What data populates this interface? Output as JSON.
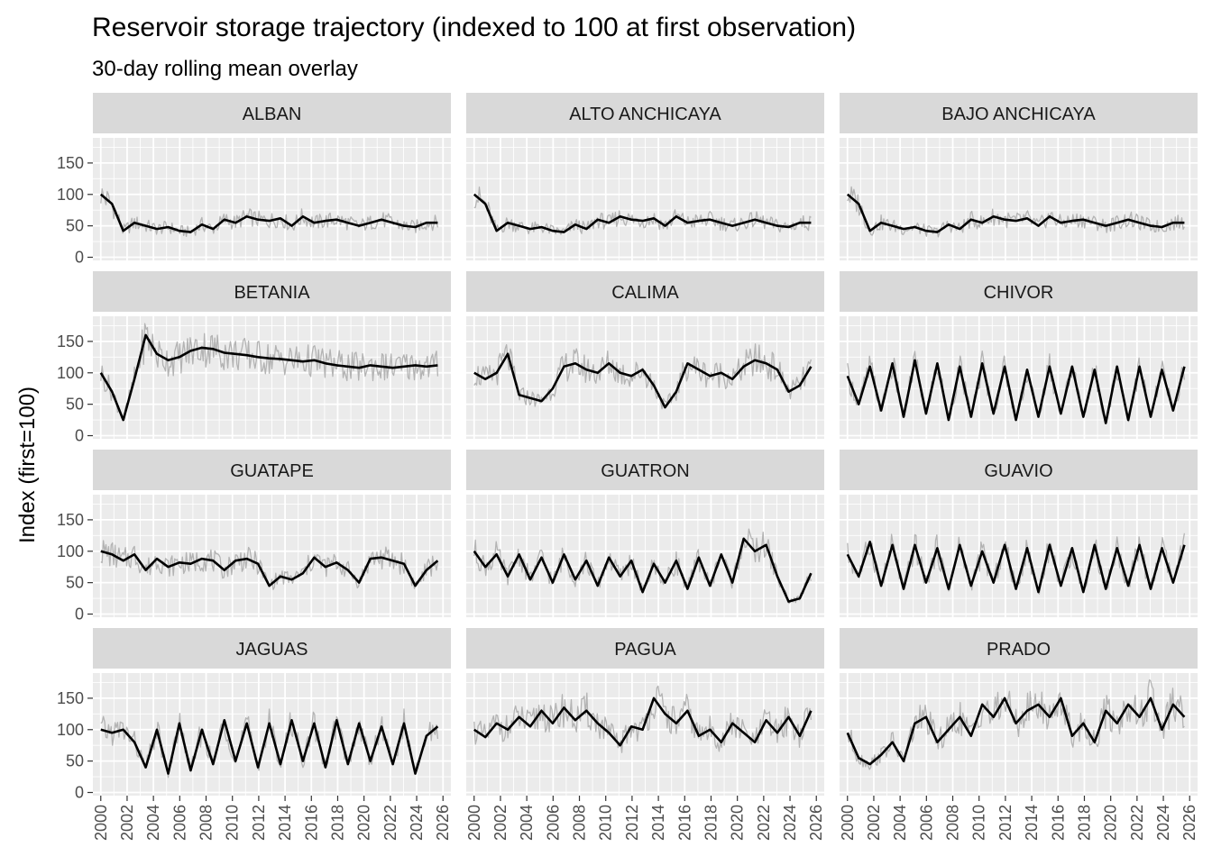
{
  "chart_data": {
    "type": "line",
    "title": "Reservoir storage trajectory (indexed to 100 at first observation)",
    "subtitle": "30-day rolling mean overlay",
    "ylabel": "Index (first=100)",
    "xlabel": "",
    "xlim": [
      1999.4,
      2026.6
    ],
    "ylim": [
      -5,
      190
    ],
    "y_ticks": [
      0,
      50,
      100,
      150
    ],
    "x_ticks": [
      2000,
      2002,
      2004,
      2006,
      2008,
      2010,
      2012,
      2014,
      2016,
      2018,
      2020,
      2022,
      2024,
      2026
    ],
    "grid": true,
    "facet_layout": "4 rows x 3 columns",
    "colors": {
      "panel_bg": "#ebebeb",
      "strip_bg": "#d9d9d9",
      "grid": "#ffffff",
      "raw_series": "#b3b3b3",
      "rolling_mean": "#000000"
    },
    "panels": [
      {
        "name": "ALBAN",
        "y": [
          100,
          85,
          42,
          55,
          50,
          45,
          48,
          42,
          40,
          52,
          45,
          60,
          55,
          65,
          60,
          58,
          62,
          50,
          65,
          55,
          58,
          60,
          55,
          50,
          55,
          60,
          55,
          50,
          48,
          55,
          55
        ]
      },
      {
        "name": "ALTO ANCHICAYA",
        "y": [
          100,
          85,
          42,
          55,
          50,
          45,
          48,
          42,
          40,
          52,
          45,
          60,
          55,
          65,
          60,
          58,
          62,
          50,
          65,
          55,
          58,
          60,
          55,
          50,
          55,
          60,
          55,
          50,
          48,
          55,
          55
        ]
      },
      {
        "name": "BAJO ANCHICAYA",
        "y": [
          100,
          85,
          42,
          55,
          50,
          45,
          48,
          42,
          40,
          52,
          45,
          60,
          55,
          65,
          60,
          58,
          62,
          50,
          65,
          55,
          58,
          60,
          55,
          50,
          55,
          60,
          55,
          50,
          48,
          55,
          55
        ]
      },
      {
        "name": "BETANIA",
        "y": [
          100,
          70,
          25,
          90,
          160,
          130,
          120,
          125,
          135,
          140,
          138,
          132,
          130,
          128,
          125,
          123,
          122,
          120,
          118,
          120,
          115,
          112,
          110,
          108,
          112,
          110,
          108,
          110,
          112,
          110,
          112
        ]
      },
      {
        "name": "CALIMA",
        "y": [
          100,
          90,
          100,
          130,
          65,
          60,
          55,
          75,
          110,
          115,
          105,
          100,
          115,
          100,
          95,
          105,
          80,
          45,
          70,
          115,
          105,
          95,
          100,
          90,
          110,
          120,
          115,
          105,
          70,
          80,
          110
        ]
      },
      {
        "name": "CHIVOR",
        "y": [
          95,
          50,
          110,
          40,
          115,
          30,
          120,
          35,
          115,
          25,
          110,
          30,
          115,
          35,
          110,
          25,
          105,
          30,
          110,
          35,
          110,
          30,
          105,
          20,
          110,
          25,
          110,
          30,
          105,
          40,
          110
        ]
      },
      {
        "name": "GUATAPE",
        "y": [
          100,
          95,
          85,
          95,
          70,
          88,
          75,
          82,
          80,
          88,
          85,
          70,
          85,
          88,
          80,
          45,
          60,
          55,
          65,
          90,
          75,
          82,
          70,
          50,
          88,
          90,
          85,
          80,
          45,
          70,
          85
        ]
      },
      {
        "name": "GUATRON",
        "y": [
          100,
          75,
          95,
          60,
          95,
          55,
          90,
          50,
          95,
          55,
          85,
          45,
          90,
          60,
          85,
          35,
          80,
          50,
          85,
          40,
          90,
          45,
          95,
          50,
          120,
          100,
          110,
          60,
          20,
          25,
          65
        ]
      },
      {
        "name": "GUAVIO",
        "y": [
          95,
          60,
          115,
          45,
          110,
          40,
          110,
          50,
          105,
          40,
          110,
          45,
          100,
          50,
          110,
          40,
          105,
          35,
          110,
          45,
          105,
          35,
          110,
          40,
          105,
          45,
          110,
          40,
          105,
          50,
          110
        ]
      },
      {
        "name": "JAGUAS",
        "y": [
          100,
          95,
          100,
          80,
          40,
          100,
          30,
          110,
          35,
          100,
          45,
          115,
          50,
          110,
          40,
          110,
          45,
          115,
          50,
          110,
          40,
          115,
          45,
          110,
          50,
          105,
          45,
          110,
          30,
          90,
          105
        ]
      },
      {
        "name": "PAGUA",
        "y": [
          100,
          88,
          110,
          100,
          120,
          105,
          130,
          110,
          135,
          115,
          130,
          110,
          95,
          75,
          105,
          100,
          150,
          125,
          110,
          130,
          90,
          100,
          80,
          110,
          95,
          80,
          115,
          95,
          120,
          90,
          130
        ]
      },
      {
        "name": "PRADO",
        "y": [
          95,
          55,
          45,
          60,
          80,
          50,
          110,
          120,
          80,
          100,
          120,
          90,
          140,
          120,
          150,
          110,
          130,
          140,
          120,
          150,
          90,
          110,
          80,
          130,
          110,
          140,
          120,
          150,
          100,
          140,
          120
        ]
      }
    ]
  }
}
